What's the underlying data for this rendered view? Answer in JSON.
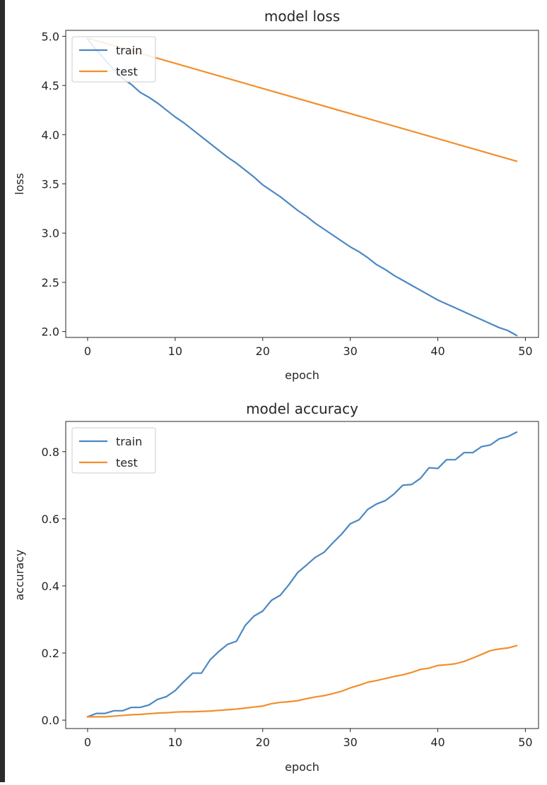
{
  "colors": {
    "train": "#4c88c2",
    "test": "#f28e2b",
    "axis": "#262626",
    "background": "#ffffff"
  },
  "chart_data": [
    {
      "type": "line",
      "title": "model loss",
      "xlabel": "epoch",
      "ylabel": "loss",
      "xlim": [
        -2.5,
        51.5
      ],
      "ylim": [
        1.94,
        5.06
      ],
      "xticks": [
        0,
        10,
        20,
        30,
        40,
        50
      ],
      "yticks": [
        2.0,
        2.5,
        3.0,
        3.5,
        4.0,
        4.5,
        5.0
      ],
      "ytick_labels": [
        "2.0",
        "2.5",
        "3.0",
        "3.5",
        "4.0",
        "4.5",
        "5.0"
      ],
      "legend_position": "upper-left",
      "series": [
        {
          "name": "train",
          "x": [
            0,
            1,
            2,
            3,
            4,
            5,
            6,
            7,
            8,
            9,
            10,
            11,
            12,
            13,
            14,
            15,
            16,
            17,
            18,
            19,
            20,
            21,
            22,
            23,
            24,
            25,
            26,
            27,
            28,
            29,
            30,
            31,
            32,
            33,
            34,
            35,
            36,
            37,
            38,
            39,
            40,
            41,
            42,
            43,
            44,
            45,
            46,
            47,
            48,
            49
          ],
          "values": [
            4.97,
            4.86,
            4.76,
            4.66,
            4.57,
            4.51,
            4.43,
            4.38,
            4.32,
            4.25,
            4.18,
            4.12,
            4.05,
            3.98,
            3.91,
            3.84,
            3.77,
            3.71,
            3.64,
            3.57,
            3.49,
            3.43,
            3.37,
            3.3,
            3.23,
            3.17,
            3.1,
            3.04,
            2.98,
            2.92,
            2.86,
            2.81,
            2.75,
            2.68,
            2.63,
            2.57,
            2.52,
            2.47,
            2.42,
            2.37,
            2.32,
            2.28,
            2.24,
            2.2,
            2.16,
            2.12,
            2.08,
            2.04,
            2.01,
            1.96
          ]
        },
        {
          "name": "test",
          "x": [
            0,
            49
          ],
          "values": [
            4.98,
            3.73
          ]
        }
      ]
    },
    {
      "type": "line",
      "title": "model accuracy",
      "xlabel": "epoch",
      "ylabel": "accuracy",
      "xlim": [
        -2.5,
        51.5
      ],
      "ylim": [
        -0.025,
        0.89
      ],
      "xticks": [
        0,
        10,
        20,
        30,
        40,
        50
      ],
      "yticks": [
        0.0,
        0.2,
        0.4,
        0.6,
        0.8
      ],
      "ytick_labels": [
        "0.0",
        "0.2",
        "0.4",
        "0.6",
        "0.8"
      ],
      "legend_position": "upper-left",
      "series": [
        {
          "name": "train",
          "x": [
            0,
            1,
            2,
            3,
            4,
            5,
            6,
            7,
            8,
            9,
            10,
            11,
            12,
            13,
            14,
            15,
            16,
            17,
            18,
            19,
            20,
            21,
            22,
            23,
            24,
            25,
            26,
            27,
            28,
            29,
            30,
            31,
            32,
            33,
            34,
            35,
            36,
            37,
            38,
            39,
            40,
            41,
            42,
            43,
            44,
            45,
            46,
            47,
            48,
            49
          ],
          "values": [
            0.01,
            0.02,
            0.02,
            0.028,
            0.028,
            0.038,
            0.038,
            0.045,
            0.062,
            0.07,
            0.088,
            0.115,
            0.14,
            0.14,
            0.18,
            0.205,
            0.226,
            0.235,
            0.282,
            0.31,
            0.325,
            0.357,
            0.372,
            0.404,
            0.44,
            0.462,
            0.485,
            0.5,
            0.528,
            0.554,
            0.585,
            0.597,
            0.628,
            0.644,
            0.654,
            0.674,
            0.7,
            0.702,
            0.72,
            0.752,
            0.75,
            0.776,
            0.776,
            0.797,
            0.797,
            0.815,
            0.82,
            0.838,
            0.845,
            0.858
          ]
        },
        {
          "name": "test",
          "x": [
            0,
            1,
            2,
            3,
            4,
            5,
            6,
            7,
            8,
            9,
            10,
            11,
            12,
            13,
            14,
            15,
            16,
            17,
            18,
            19,
            20,
            21,
            22,
            23,
            24,
            25,
            26,
            27,
            28,
            29,
            30,
            31,
            32,
            33,
            34,
            35,
            36,
            37,
            38,
            39,
            40,
            41,
            42,
            43,
            44,
            45,
            46,
            47,
            48,
            49
          ],
          "values": [
            0.01,
            0.01,
            0.01,
            0.012,
            0.014,
            0.016,
            0.017,
            0.019,
            0.021,
            0.022,
            0.024,
            0.025,
            0.025,
            0.026,
            0.027,
            0.029,
            0.031,
            0.033,
            0.036,
            0.039,
            0.042,
            0.049,
            0.053,
            0.055,
            0.058,
            0.064,
            0.069,
            0.073,
            0.079,
            0.086,
            0.096,
            0.104,
            0.113,
            0.118,
            0.124,
            0.13,
            0.135,
            0.142,
            0.151,
            0.155,
            0.163,
            0.165,
            0.168,
            0.175,
            0.185,
            0.196,
            0.207,
            0.212,
            0.215,
            0.222
          ]
        }
      ]
    }
  ]
}
